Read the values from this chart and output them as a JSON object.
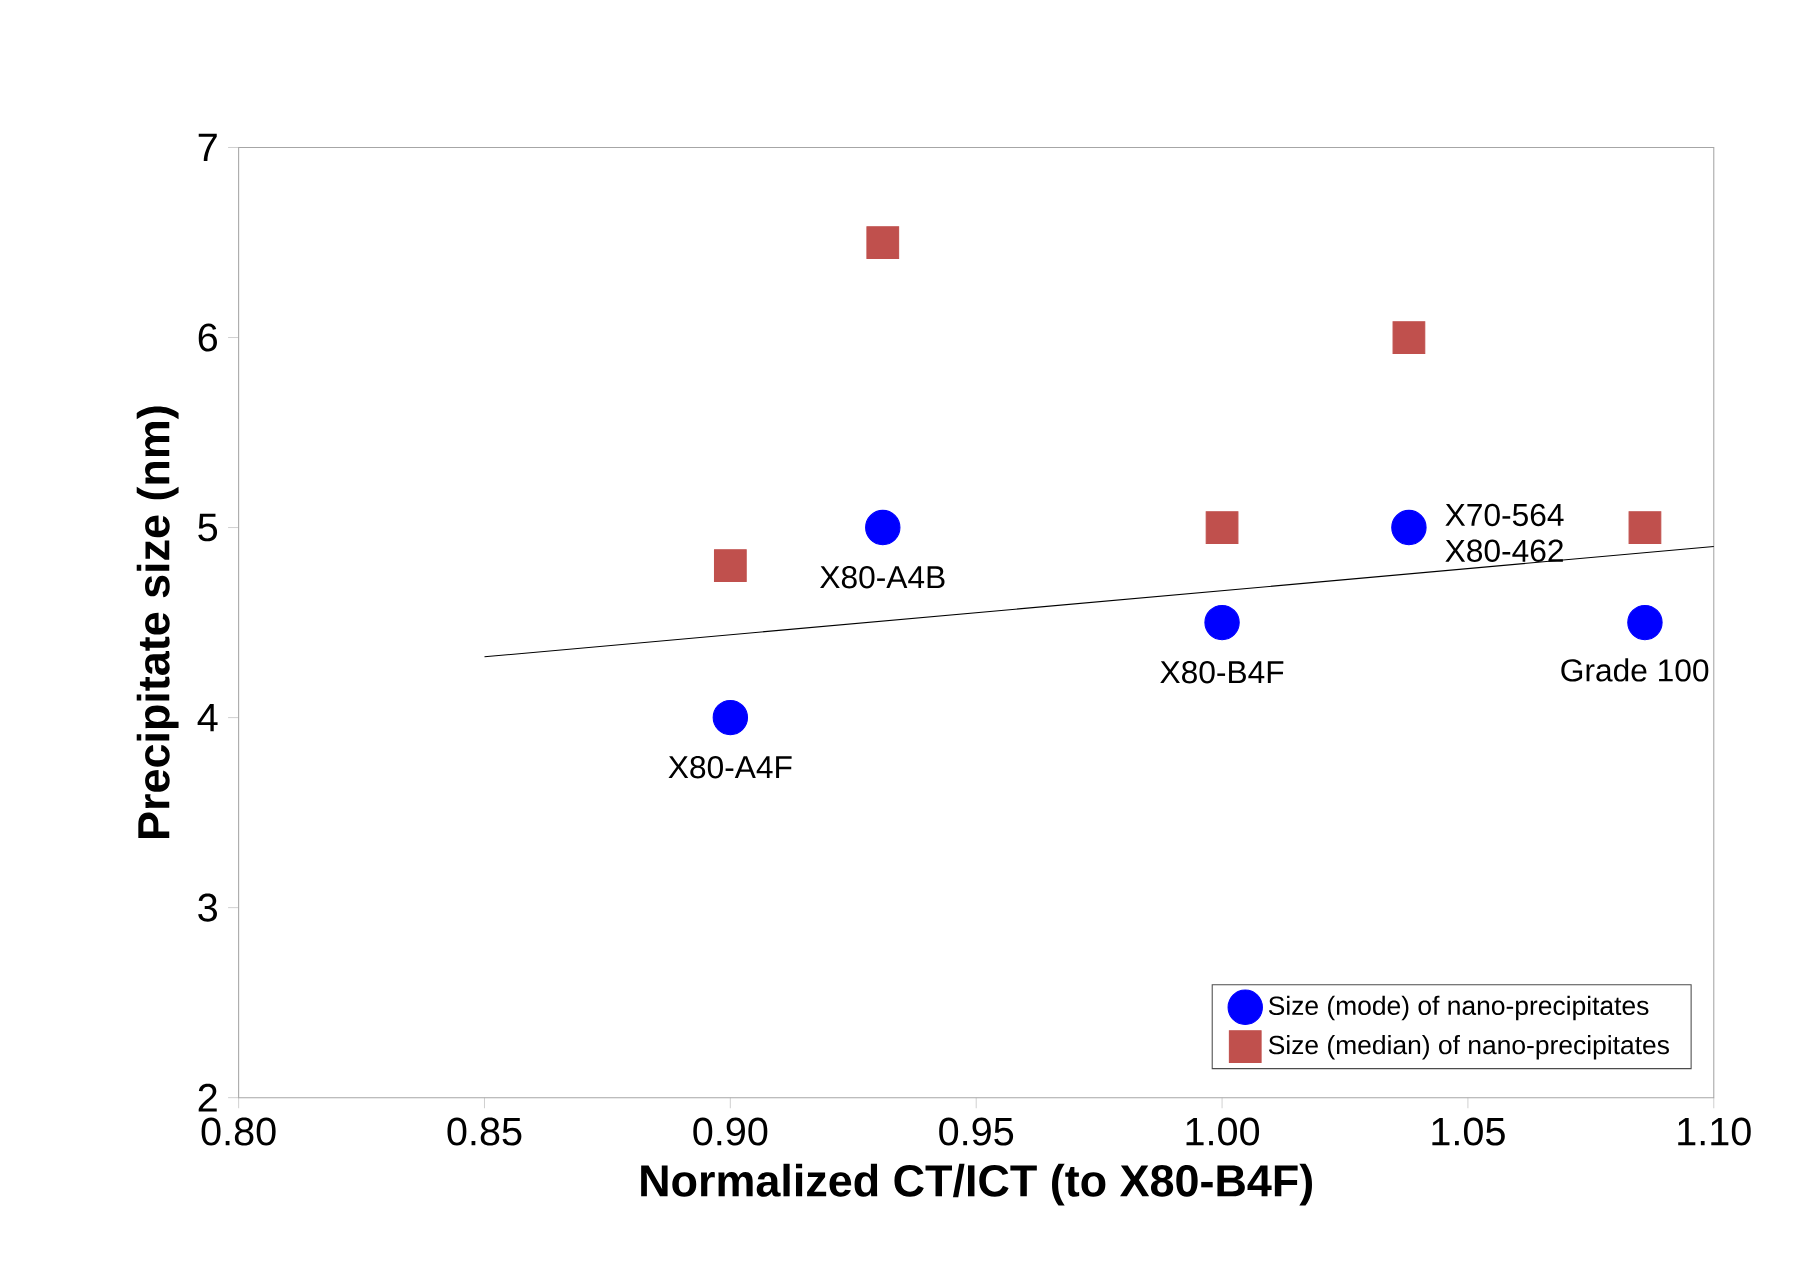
{
  "chart_data": {
    "type": "scatter",
    "xlabel": "Normalized CT/ICT (to X80-B4F)",
    "ylabel": "Precipitate  size (nm)",
    "xlim": [
      0.8,
      1.1
    ],
    "xticks": [
      {
        "value": 0.8,
        "label": "0.80"
      },
      {
        "value": 0.85,
        "label": "0.85"
      },
      {
        "value": 0.9,
        "label": "0.90"
      },
      {
        "value": 0.95,
        "label": "0.95"
      },
      {
        "value": 1.0,
        "label": "1.00"
      },
      {
        "value": 1.05,
        "label": "1.05"
      },
      {
        "value": 1.1,
        "label": "1.10"
      }
    ],
    "ylim": [
      2,
      7
    ],
    "yticks": [
      2,
      3,
      4,
      5,
      6,
      7
    ],
    "grid": false,
    "legend": "bottom right",
    "series": [
      {
        "name": "Size (mode) of nano-precipitates",
        "color": "#0000ff",
        "marker": "circle",
        "x": [
          0.9,
          0.931,
          1.0,
          1.038,
          1.086
        ],
        "values": [
          4.0,
          5.0,
          4.5,
          5.0,
          4.5
        ]
      },
      {
        "name": "Size (median) of nano-precipitates",
        "color": "#c0504d",
        "marker": "square",
        "x": [
          0.9,
          0.931,
          1.0,
          1.038,
          1.086
        ],
        "values": [
          4.8,
          6.5,
          5.0,
          6.0,
          5.0
        ]
      },
      {
        "type": "line",
        "color": "#000000",
        "marker": "none",
        "x": [
          0.85,
          1.1
        ],
        "values": [
          4.32,
          4.9
        ]
      }
    ],
    "annotations": [
      {
        "text": "X80-A4F",
        "x": 0.9,
        "y": 4.0
      },
      {
        "text": "X80-A4B",
        "x": 0.931,
        "y": 5.0
      },
      {
        "text": "X80-B4F",
        "x": 1.0,
        "y": 4.5
      },
      {
        "text": "X70-564",
        "x": 1.038,
        "y": 5.0
      },
      {
        "text": "X80-462",
        "x": 1.038,
        "y": 5.0
      },
      {
        "text": "Grade 100",
        "x": 1.086,
        "y": 4.5
      }
    ]
  }
}
